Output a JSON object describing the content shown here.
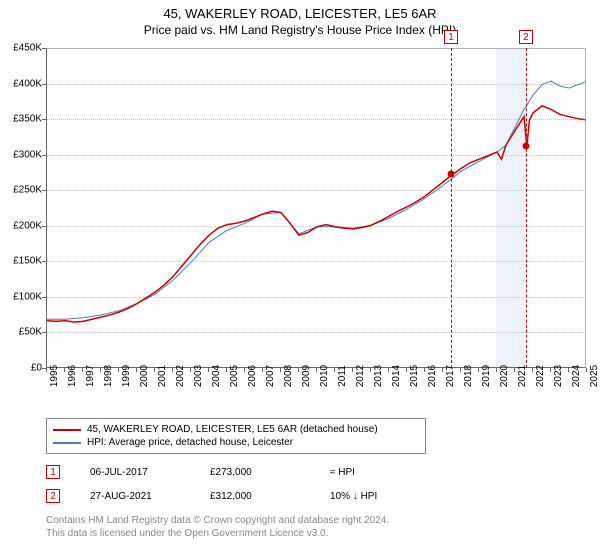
{
  "title": "45, WAKERLEY ROAD, LEICESTER, LE5 6AR",
  "subtitle": "Price paid vs. HM Land Registry's House Price Index (HPI)",
  "chart": {
    "type": "line",
    "plot_bg": "#ffffff",
    "grid_color": "#c0c0c0",
    "axis_color": "#666666",
    "label_fontsize": 10,
    "ylim": [
      0,
      450000
    ],
    "ytick_step": 50000,
    "yticks": [
      "£0",
      "£50K",
      "£100K",
      "£150K",
      "£200K",
      "£250K",
      "£300K",
      "£350K",
      "£400K",
      "£450K"
    ],
    "xlim": [
      1995,
      2025
    ],
    "xticks": [
      "1995",
      "1996",
      "1997",
      "1998",
      "1999",
      "2000",
      "2001",
      "2002",
      "2003",
      "2004",
      "2005",
      "2006",
      "2007",
      "2008",
      "2009",
      "2010",
      "2011",
      "2012",
      "2013",
      "2014",
      "2015",
      "2016",
      "2017",
      "2018",
      "2019",
      "2020",
      "2021",
      "2022",
      "2023",
      "2024",
      "2025"
    ],
    "band_start": 2020.0,
    "band_end": 2021.66,
    "band_color": "#eef3fb",
    "vdash_color": "#cc0000",
    "series": [
      {
        "name": "property",
        "label": "45, WAKERLEY ROAD, LEICESTER, LE5 6AR (detached house)",
        "color": "#cc0000",
        "width": 1.5,
        "points": [
          [
            1995.0,
            68000
          ],
          [
            1995.5,
            67000
          ],
          [
            1996.0,
            68000
          ],
          [
            1996.5,
            66000
          ],
          [
            1997.0,
            67000
          ],
          [
            1997.5,
            70000
          ],
          [
            1998.0,
            73000
          ],
          [
            1998.5,
            76000
          ],
          [
            1999.0,
            80000
          ],
          [
            1999.5,
            85000
          ],
          [
            2000.0,
            92000
          ],
          [
            2000.5,
            100000
          ],
          [
            2001.0,
            108000
          ],
          [
            2001.5,
            118000
          ],
          [
            2002.0,
            130000
          ],
          [
            2002.5,
            145000
          ],
          [
            2003.0,
            160000
          ],
          [
            2003.5,
            175000
          ],
          [
            2004.0,
            188000
          ],
          [
            2004.5,
            198000
          ],
          [
            2005.0,
            203000
          ],
          [
            2005.5,
            205000
          ],
          [
            2006.0,
            208000
          ],
          [
            2006.5,
            213000
          ],
          [
            2007.0,
            218000
          ],
          [
            2007.5,
            222000
          ],
          [
            2008.0,
            220000
          ],
          [
            2008.5,
            205000
          ],
          [
            2009.0,
            188000
          ],
          [
            2009.5,
            192000
          ],
          [
            2010.0,
            200000
          ],
          [
            2010.5,
            203000
          ],
          [
            2011.0,
            200000
          ],
          [
            2011.5,
            198000
          ],
          [
            2012.0,
            197000
          ],
          [
            2012.5,
            199000
          ],
          [
            2013.0,
            202000
          ],
          [
            2013.5,
            208000
          ],
          [
            2014.0,
            215000
          ],
          [
            2014.5,
            222000
          ],
          [
            2015.0,
            228000
          ],
          [
            2015.5,
            235000
          ],
          [
            2016.0,
            243000
          ],
          [
            2016.5,
            253000
          ],
          [
            2017.0,
            263000
          ],
          [
            2017.5,
            273000
          ],
          [
            2018.0,
            282000
          ],
          [
            2018.5,
            290000
          ],
          [
            2019.0,
            295000
          ],
          [
            2019.5,
            300000
          ],
          [
            2020.0,
            305000
          ],
          [
            2020.25,
            295000
          ],
          [
            2020.5,
            315000
          ],
          [
            2021.0,
            335000
          ],
          [
            2021.5,
            355000
          ],
          [
            2021.66,
            312000
          ],
          [
            2021.8,
            350000
          ],
          [
            2022.0,
            360000
          ],
          [
            2022.5,
            370000
          ],
          [
            2023.0,
            365000
          ],
          [
            2023.5,
            358000
          ],
          [
            2024.0,
            355000
          ],
          [
            2024.5,
            352000
          ],
          [
            2025.0,
            350000
          ]
        ]
      },
      {
        "name": "hpi",
        "label": "HPI: Average price, detached house, Leicester",
        "color": "#4a7ebb",
        "width": 1,
        "points": [
          [
            1995.0,
            70000
          ],
          [
            1996.0,
            70000
          ],
          [
            1997.0,
            72000
          ],
          [
            1998.0,
            76000
          ],
          [
            1999.0,
            82000
          ],
          [
            2000.0,
            92000
          ],
          [
            2001.0,
            105000
          ],
          [
            2002.0,
            125000
          ],
          [
            2003.0,
            150000
          ],
          [
            2004.0,
            178000
          ],
          [
            2005.0,
            195000
          ],
          [
            2006.0,
            205000
          ],
          [
            2007.0,
            218000
          ],
          [
            2008.0,
            220000
          ],
          [
            2008.5,
            205000
          ],
          [
            2009.0,
            190000
          ],
          [
            2010.0,
            200000
          ],
          [
            2011.0,
            200000
          ],
          [
            2012.0,
            198000
          ],
          [
            2013.0,
            202000
          ],
          [
            2014.0,
            212000
          ],
          [
            2015.0,
            225000
          ],
          [
            2016.0,
            240000
          ],
          [
            2017.0,
            258000
          ],
          [
            2018.0,
            278000
          ],
          [
            2019.0,
            292000
          ],
          [
            2020.0,
            305000
          ],
          [
            2020.5,
            315000
          ],
          [
            2021.0,
            340000
          ],
          [
            2021.5,
            365000
          ],
          [
            2022.0,
            385000
          ],
          [
            2022.5,
            400000
          ],
          [
            2023.0,
            405000
          ],
          [
            2023.5,
            398000
          ],
          [
            2024.0,
            395000
          ],
          [
            2024.5,
            400000
          ],
          [
            2025.0,
            405000
          ]
        ]
      }
    ],
    "sale_points": [
      {
        "x": 2017.5,
        "y": 273000
      },
      {
        "x": 2021.66,
        "y": 312000
      }
    ],
    "markers": [
      {
        "num": "1",
        "x": 2017.5
      },
      {
        "num": "2",
        "x": 2021.66
      }
    ]
  },
  "legend": {
    "series1": "45, WAKERLEY ROAD, LEICESTER, LE5 6AR (detached house)",
    "series2": "HPI: Average price, detached house, Leicester"
  },
  "events": [
    {
      "num": "1",
      "date": "06-JUL-2017",
      "price": "£273,000",
      "diff": "≈ HPI"
    },
    {
      "num": "2",
      "date": "27-AUG-2021",
      "price": "£312,000",
      "diff_pct": "10%",
      "diff_dir": "↓",
      "diff_suffix": "HPI"
    }
  ],
  "attribution": {
    "line1": "Contains HM Land Registry data © Crown copyright and database right 2024.",
    "line2": "This data is licensed under the Open Government Licence v3.0."
  }
}
